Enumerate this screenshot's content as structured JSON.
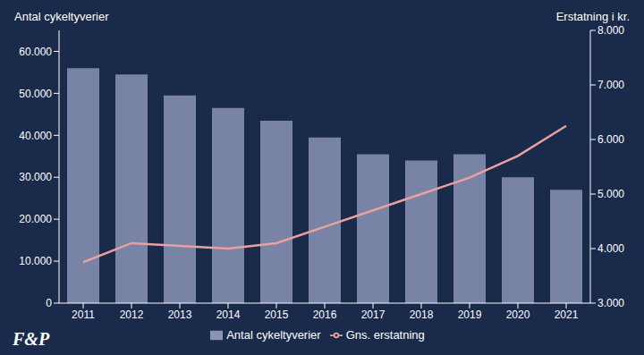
{
  "chart_data": {
    "type": "bar",
    "ylabel": "Antal cykeltyverier",
    "y2label": "Erstatning i kr.",
    "categories": [
      "2011",
      "2012",
      "2013",
      "2014",
      "2015",
      "2016",
      "2017",
      "2018",
      "2019",
      "2020",
      "2021"
    ],
    "series": [
      {
        "name": "Antal cykeltyverier",
        "type": "bar",
        "color": "#8B93B5",
        "values": [
          56000,
          54500,
          49500,
          46500,
          43500,
          39500,
          35500,
          34000,
          35500,
          30000,
          27000
        ]
      },
      {
        "name": "Gns. erstatning",
        "type": "line",
        "axis": "y2",
        "color": "#E8A0A0",
        "values": [
          3750,
          4100,
          4050,
          4000,
          4100,
          4400,
          4700,
          5000,
          5300,
          5700,
          6250
        ]
      }
    ],
    "ylim": [
      0,
      65000
    ],
    "yticks": [
      0,
      {
        "value": 10000,
        "label": "10.000"
      },
      {
        "value": 20000,
        "label": "20.000"
      },
      {
        "value": 30000,
        "label": "30.000"
      },
      {
        "value": 40000,
        "label": "40.000"
      },
      {
        "value": 50000,
        "label": "50.000"
      },
      {
        "value": 60000,
        "label": "60.000"
      }
    ],
    "y2lim": [
      3000,
      8000
    ],
    "y2ticks": [
      {
        "value": 3000,
        "label": "3.000"
      },
      {
        "value": 4000,
        "label": "4.000"
      },
      {
        "value": 5000,
        "label": "5.000"
      },
      {
        "value": 6000,
        "label": "6.000"
      },
      {
        "value": 7000,
        "label": "7.000"
      },
      {
        "value": 8000,
        "label": "8.000"
      }
    ],
    "grid": false,
    "legend": "bottom",
    "annotations": [
      "F&P"
    ]
  }
}
